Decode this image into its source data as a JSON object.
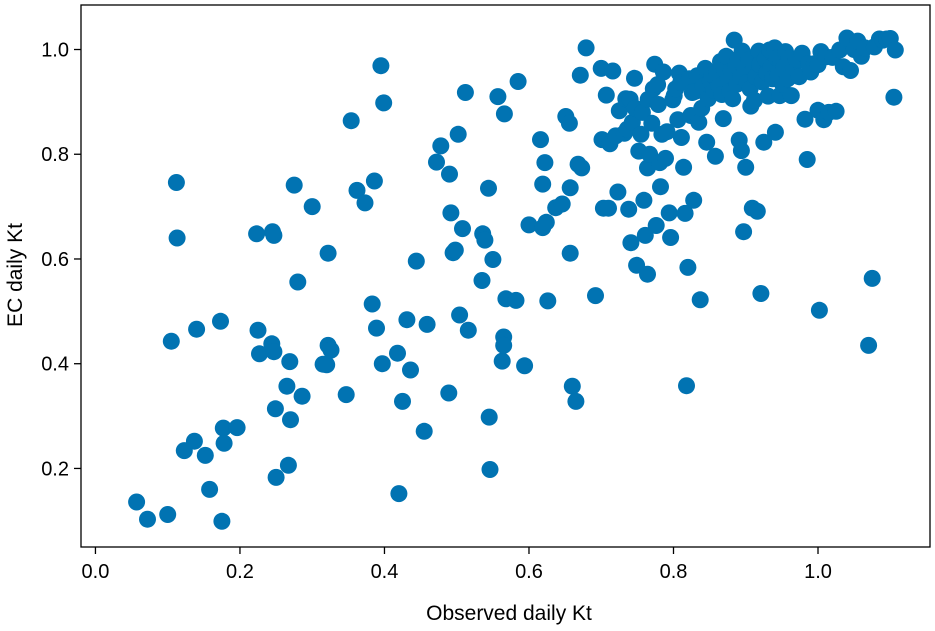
{
  "chart_data": {
    "type": "scatter",
    "xlabel": "Observed daily Kt",
    "ylabel": "EC daily Kt",
    "xlim": [
      -0.02,
      1.155
    ],
    "ylim": [
      0.05,
      1.085
    ],
    "grid": false,
    "marker_color": "#0173b2",
    "xticks": [
      {
        "value": 0.0,
        "label": "0.0"
      },
      {
        "value": 0.2,
        "label": "0.2"
      },
      {
        "value": 0.4,
        "label": "0.4"
      },
      {
        "value": 0.6,
        "label": "0.6"
      },
      {
        "value": 0.8,
        "label": "0.8"
      },
      {
        "value": 1.0,
        "label": "1.0"
      }
    ],
    "yticks": [
      {
        "value": 0.2,
        "label": "0.2"
      },
      {
        "value": 0.4,
        "label": "0.4"
      },
      {
        "value": 0.6,
        "label": "0.6"
      },
      {
        "value": 0.8,
        "label": "0.8"
      },
      {
        "value": 1.0,
        "label": "1.0"
      }
    ],
    "points": [
      [
        0.057,
        0.136
      ],
      [
        0.072,
        0.103
      ],
      [
        0.1,
        0.112
      ],
      [
        0.105,
        0.443
      ],
      [
        0.112,
        0.746
      ],
      [
        0.113,
        0.64
      ],
      [
        0.123,
        0.234
      ],
      [
        0.137,
        0.252
      ],
      [
        0.14,
        0.466
      ],
      [
        0.152,
        0.225
      ],
      [
        0.158,
        0.16
      ],
      [
        0.173,
        0.481
      ],
      [
        0.175,
        0.099
      ],
      [
        0.177,
        0.277
      ],
      [
        0.178,
        0.248
      ],
      [
        0.196,
        0.278
      ],
      [
        0.223,
        0.648
      ],
      [
        0.225,
        0.464
      ],
      [
        0.227,
        0.419
      ],
      [
        0.245,
        0.652
      ],
      [
        0.247,
        0.645
      ],
      [
        0.244,
        0.438
      ],
      [
        0.247,
        0.423
      ],
      [
        0.249,
        0.314
      ],
      [
        0.25,
        0.183
      ],
      [
        0.265,
        0.357
      ],
      [
        0.267,
        0.206
      ],
      [
        0.269,
        0.404
      ],
      [
        0.27,
        0.293
      ],
      [
        0.275,
        0.741
      ],
      [
        0.28,
        0.556
      ],
      [
        0.286,
        0.338
      ],
      [
        0.3,
        0.7
      ],
      [
        0.315,
        0.399
      ],
      [
        0.32,
        0.398
      ],
      [
        0.322,
        0.435
      ],
      [
        0.322,
        0.611
      ],
      [
        0.326,
        0.426
      ],
      [
        0.347,
        0.341
      ],
      [
        0.354,
        0.864
      ],
      [
        0.362,
        0.731
      ],
      [
        0.373,
        0.707
      ],
      [
        0.383,
        0.514
      ],
      [
        0.386,
        0.749
      ],
      [
        0.389,
        0.468
      ],
      [
        0.395,
        0.969
      ],
      [
        0.397,
        0.4
      ],
      [
        0.399,
        0.898
      ],
      [
        0.418,
        0.42
      ],
      [
        0.42,
        0.152
      ],
      [
        0.425,
        0.328
      ],
      [
        0.431,
        0.484
      ],
      [
        0.436,
        0.388
      ],
      [
        0.444,
        0.596
      ],
      [
        0.455,
        0.271
      ],
      [
        0.459,
        0.475
      ],
      [
        0.472,
        0.785
      ],
      [
        0.478,
        0.816
      ],
      [
        0.49,
        0.762
      ],
      [
        0.489,
        0.344
      ],
      [
        0.492,
        0.688
      ],
      [
        0.495,
        0.612
      ],
      [
        0.498,
        0.617
      ],
      [
        0.502,
        0.838
      ],
      [
        0.504,
        0.493
      ],
      [
        0.508,
        0.658
      ],
      [
        0.512,
        0.918
      ],
      [
        0.516,
        0.464
      ],
      [
        0.535,
        0.559
      ],
      [
        0.536,
        0.648
      ],
      [
        0.539,
        0.636
      ],
      [
        0.544,
        0.735
      ],
      [
        0.545,
        0.298
      ],
      [
        0.546,
        0.198
      ],
      [
        0.55,
        0.599
      ],
      [
        0.557,
        0.91
      ],
      [
        0.563,
        0.405
      ],
      [
        0.565,
        0.451
      ],
      [
        0.565,
        0.435
      ],
      [
        0.566,
        0.877
      ],
      [
        0.568,
        0.524
      ],
      [
        0.582,
        0.521
      ],
      [
        0.585,
        0.939
      ],
      [
        0.594,
        0.396
      ],
      [
        0.6,
        0.665
      ],
      [
        0.616,
        0.828
      ],
      [
        0.619,
        0.66
      ],
      [
        0.619,
        0.743
      ],
      [
        0.622,
        0.784
      ],
      [
        0.626,
        0.52
      ],
      [
        0.624,
        0.67
      ],
      [
        0.637,
        0.698
      ],
      [
        0.646,
        0.705
      ],
      [
        0.651,
        0.872
      ],
      [
        0.656,
        0.859
      ],
      [
        0.657,
        0.611
      ],
      [
        0.657,
        0.736
      ],
      [
        0.66,
        0.357
      ],
      [
        0.665,
        0.328
      ],
      [
        0.668,
        0.781
      ],
      [
        0.671,
        0.951
      ],
      [
        0.673,
        0.774
      ],
      [
        0.679,
        1.003
      ],
      [
        0.692,
        0.53
      ],
      [
        0.7,
        0.964
      ],
      [
        0.701,
        0.828
      ],
      [
        0.703,
        0.697
      ],
      [
        0.707,
        0.913
      ],
      [
        0.71,
        0.697
      ],
      [
        0.712,
        0.82
      ],
      [
        0.716,
        0.959
      ],
      [
        0.72,
        0.835
      ],
      [
        0.723,
        0.728
      ],
      [
        0.725,
        0.883
      ],
      [
        0.732,
        0.84
      ],
      [
        0.734,
        0.906
      ],
      [
        0.736,
        0.848
      ],
      [
        0.738,
        0.695
      ],
      [
        0.74,
        0.905
      ],
      [
        0.741,
        0.631
      ],
      [
        0.743,
        0.861
      ],
      [
        0.746,
        0.945
      ],
      [
        0.747,
        0.888
      ],
      [
        0.749,
        0.588
      ],
      [
        0.752,
        0.806
      ],
      [
        0.755,
        0.838
      ],
      [
        0.757,
        0.88
      ],
      [
        0.759,
        0.712
      ],
      [
        0.761,
        0.645
      ],
      [
        0.764,
        0.571
      ],
      [
        0.764,
        0.774
      ],
      [
        0.765,
        0.905
      ],
      [
        0.767,
        0.8
      ],
      [
        0.77,
        0.859
      ],
      [
        0.772,
        0.925
      ],
      [
        0.774,
        0.972
      ],
      [
        0.776,
        0.664
      ],
      [
        0.778,
        0.933
      ],
      [
        0.779,
        0.895
      ],
      [
        0.781,
        0.784
      ],
      [
        0.782,
        0.738
      ],
      [
        0.784,
        0.838
      ],
      [
        0.786,
        0.957
      ],
      [
        0.789,
        0.792
      ],
      [
        0.791,
        0.843
      ],
      [
        0.794,
        0.688
      ],
      [
        0.796,
        0.641
      ],
      [
        0.799,
        0.904
      ],
      [
        0.801,
        0.912
      ],
      [
        0.803,
        0.925
      ],
      [
        0.806,
        0.866
      ],
      [
        0.808,
        0.955
      ],
      [
        0.81,
        0.937
      ],
      [
        0.811,
        0.832
      ],
      [
        0.814,
        0.775
      ],
      [
        0.816,
        0.687
      ],
      [
        0.818,
        0.358
      ],
      [
        0.82,
        0.584
      ],
      [
        0.822,
        0.944
      ],
      [
        0.824,
        0.874
      ],
      [
        0.826,
        0.918
      ],
      [
        0.828,
        0.712
      ],
      [
        0.83,
        0.92
      ],
      [
        0.833,
        0.95
      ],
      [
        0.835,
        0.861
      ],
      [
        0.837,
        0.522
      ],
      [
        0.839,
        0.888
      ],
      [
        0.841,
        0.93
      ],
      [
        0.844,
        0.964
      ],
      [
        0.846,
        0.823
      ],
      [
        0.848,
        0.906
      ],
      [
        0.851,
        0.94
      ],
      [
        0.853,
        0.952
      ],
      [
        0.856,
        0.922
      ],
      [
        0.858,
        0.796
      ],
      [
        0.86,
        0.955
      ],
      [
        0.863,
        0.93
      ],
      [
        0.865,
        0.977
      ],
      [
        0.867,
        0.914
      ],
      [
        0.869,
        0.868
      ],
      [
        0.871,
        0.961
      ],
      [
        0.873,
        0.987
      ],
      [
        0.876,
        0.945
      ],
      [
        0.878,
        0.92
      ],
      [
        0.88,
        0.959
      ],
      [
        0.882,
        0.906
      ],
      [
        0.884,
        1.018
      ],
      [
        0.886,
        0.97
      ],
      [
        0.888,
        0.934
      ],
      [
        0.889,
        0.981
      ],
      [
        0.891,
        0.827
      ],
      [
        0.893,
        0.948
      ],
      [
        0.894,
        0.807
      ],
      [
        0.895,
        0.997
      ],
      [
        0.897,
        0.652
      ],
      [
        0.899,
        0.963
      ],
      [
        0.9,
        0.775
      ],
      [
        0.902,
        0.937
      ],
      [
        0.904,
        0.98
      ],
      [
        0.906,
        0.925
      ],
      [
        0.907,
        0.892
      ],
      [
        0.909,
        0.697
      ],
      [
        0.911,
        0.966
      ],
      [
        0.912,
        0.903
      ],
      [
        0.914,
        0.948
      ],
      [
        0.916,
        0.691
      ],
      [
        0.918,
        0.997
      ],
      [
        0.919,
        0.971
      ],
      [
        0.921,
        0.534
      ],
      [
        0.923,
        0.938
      ],
      [
        0.925,
        0.823
      ],
      [
        0.927,
        0.982
      ],
      [
        0.929,
        0.955
      ],
      [
        0.931,
        0.911
      ],
      [
        0.933,
        0.999
      ],
      [
        0.935,
        0.967
      ],
      [
        0.937,
        0.944
      ],
      [
        0.94,
        1.003
      ],
      [
        0.941,
        0.842
      ],
      [
        0.943,
        0.984
      ],
      [
        0.945,
        0.953
      ],
      [
        0.947,
        0.912
      ],
      [
        0.949,
        0.975
      ],
      [
        0.951,
        0.934
      ],
      [
        0.953,
        0.967
      ],
      [
        0.955,
        0.996
      ],
      [
        0.958,
        0.944
      ],
      [
        0.96,
        0.984
      ],
      [
        0.963,
        0.912
      ],
      [
        0.966,
        0.966
      ],
      [
        0.97,
        0.981
      ],
      [
        0.974,
        0.948
      ],
      [
        0.978,
        0.993
      ],
      [
        0.982,
        0.867
      ],
      [
        0.985,
        0.79
      ],
      [
        0.987,
        0.973
      ],
      [
        0.99,
        0.957
      ],
      [
        0.995,
        0.973
      ],
      [
        1.0,
        0.884
      ],
      [
        1.0,
        0.971
      ],
      [
        1.002,
        0.502
      ],
      [
        1.004,
        0.996
      ],
      [
        1.008,
        0.866
      ],
      [
        1.011,
        0.986
      ],
      [
        1.015,
        0.88
      ],
      [
        1.02,
        0.985
      ],
      [
        1.025,
        0.882
      ],
      [
        1.03,
        0.999
      ],
      [
        1.035,
        0.967
      ],
      [
        1.04,
        1.022
      ],
      [
        1.045,
        0.96
      ],
      [
        1.05,
        1.0
      ],
      [
        1.055,
        1.016
      ],
      [
        1.06,
        0.987
      ],
      [
        1.065,
        1.003
      ],
      [
        1.07,
        0.435
      ],
      [
        1.075,
        0.563
      ],
      [
        1.078,
        1.005
      ],
      [
        1.085,
        1.02
      ],
      [
        1.09,
        1.018
      ],
      [
        1.095,
        1.02
      ],
      [
        1.1,
        1.021
      ],
      [
        1.105,
        0.909
      ],
      [
        1.107,
        0.999
      ]
    ]
  }
}
